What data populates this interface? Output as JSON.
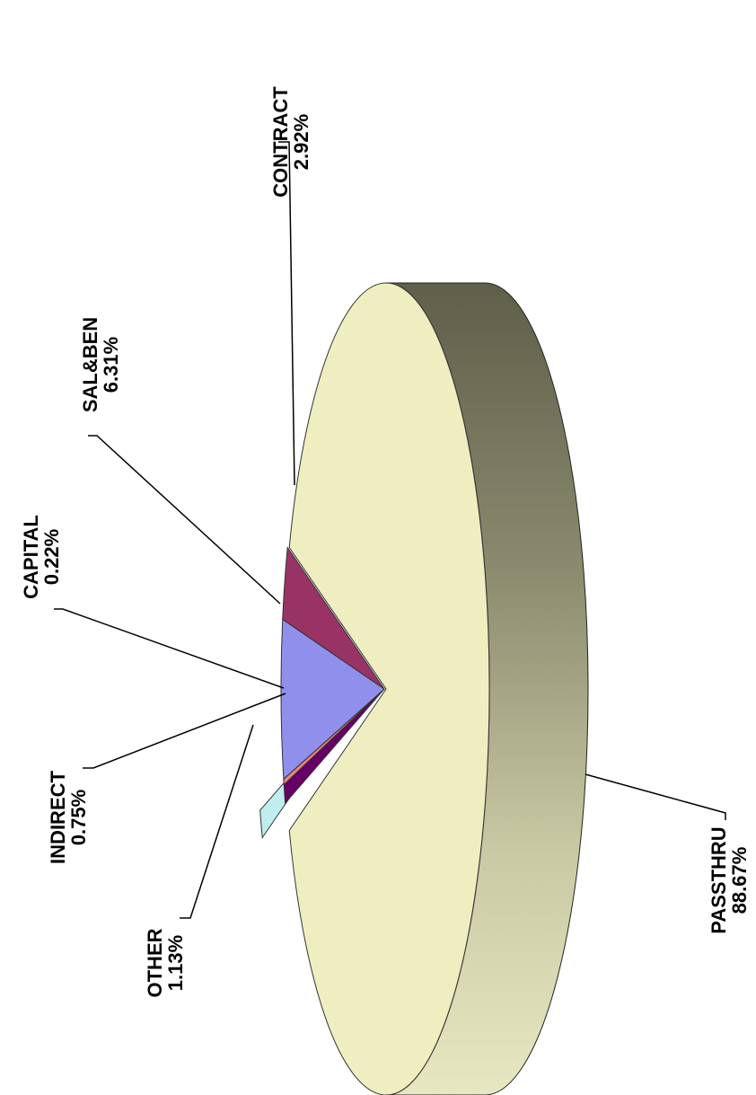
{
  "chart_data": {
    "type": "pie",
    "style": "3d-exploded, rotated 90 degrees counter-clockwise",
    "slices": [
      {
        "name": "PASSTHRU",
        "value": 88.67,
        "label": "88.67%",
        "color": "#EEEEC0"
      },
      {
        "name": "CONTRACT",
        "value": 2.92,
        "label": "2.92%",
        "color": "#993366"
      },
      {
        "name": "SAL&BEN",
        "value": 6.31,
        "label": "6.31%",
        "color": "#9090EC"
      },
      {
        "name": "CAPITAL",
        "value": 0.22,
        "label": "0.22%",
        "color": "#F08080"
      },
      {
        "name": "INDIRECT",
        "value": 0.75,
        "label": "0.75%",
        "color": "#660066"
      },
      {
        "name": "OTHER",
        "value": 1.13,
        "label": "1.13%",
        "color": "#C0EEF0"
      }
    ],
    "legend": "none"
  }
}
